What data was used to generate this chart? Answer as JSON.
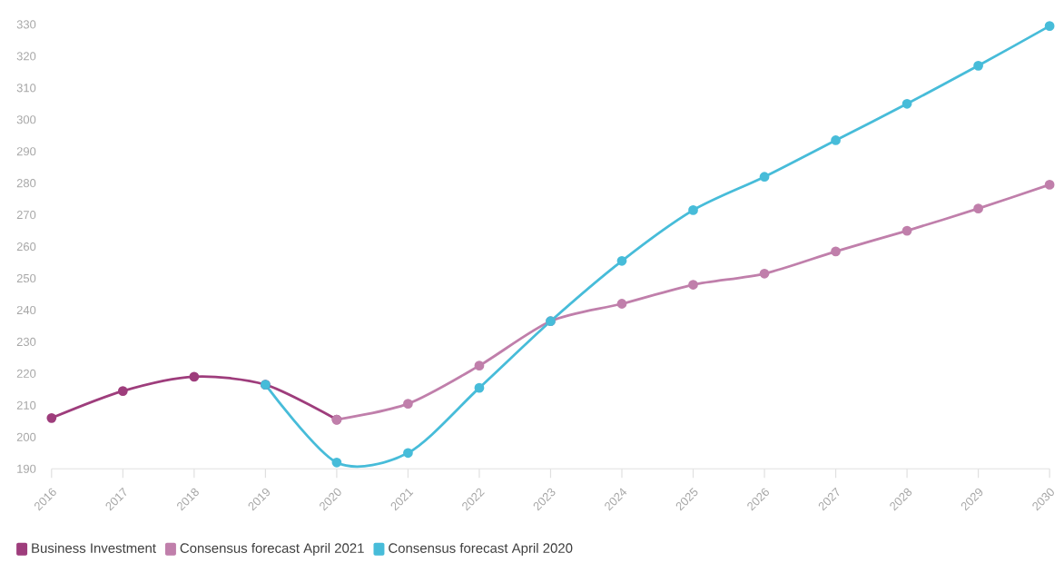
{
  "chart_data": {
    "type": "line",
    "categories": [
      "2016",
      "2017",
      "2018",
      "2019",
      "2020",
      "2021",
      "2022",
      "2023",
      "2024",
      "2025",
      "2026",
      "2027",
      "2028",
      "2029",
      "2030"
    ],
    "series": [
      {
        "name": "Business Investment",
        "color": "#9e3d7c",
        "values": [
          206,
          214.5,
          219,
          216.5,
          205.5,
          null,
          null,
          null,
          null,
          null,
          null,
          null,
          null,
          null,
          null
        ]
      },
      {
        "name": "Consensus forecast April 2021",
        "color": "#c07fab",
        "values": [
          null,
          null,
          null,
          null,
          205.5,
          210.5,
          222.5,
          236.5,
          242,
          248,
          251.5,
          258.5,
          265,
          272,
          279.5
        ]
      },
      {
        "name": "Consensus forecast April 2020",
        "color": "#47bcd9",
        "values": [
          null,
          null,
          null,
          216.5,
          192,
          195,
          215.5,
          236.5,
          255.5,
          271.5,
          282,
          293.5,
          305,
          317,
          329.5
        ]
      }
    ],
    "ylim": [
      190,
      330
    ],
    "yticks": [
      190,
      200,
      210,
      220,
      230,
      240,
      250,
      260,
      270,
      280,
      290,
      300,
      310,
      320,
      330
    ],
    "grid": false,
    "legend": "bottom left",
    "marker": "circle",
    "line_style": "solid"
  }
}
